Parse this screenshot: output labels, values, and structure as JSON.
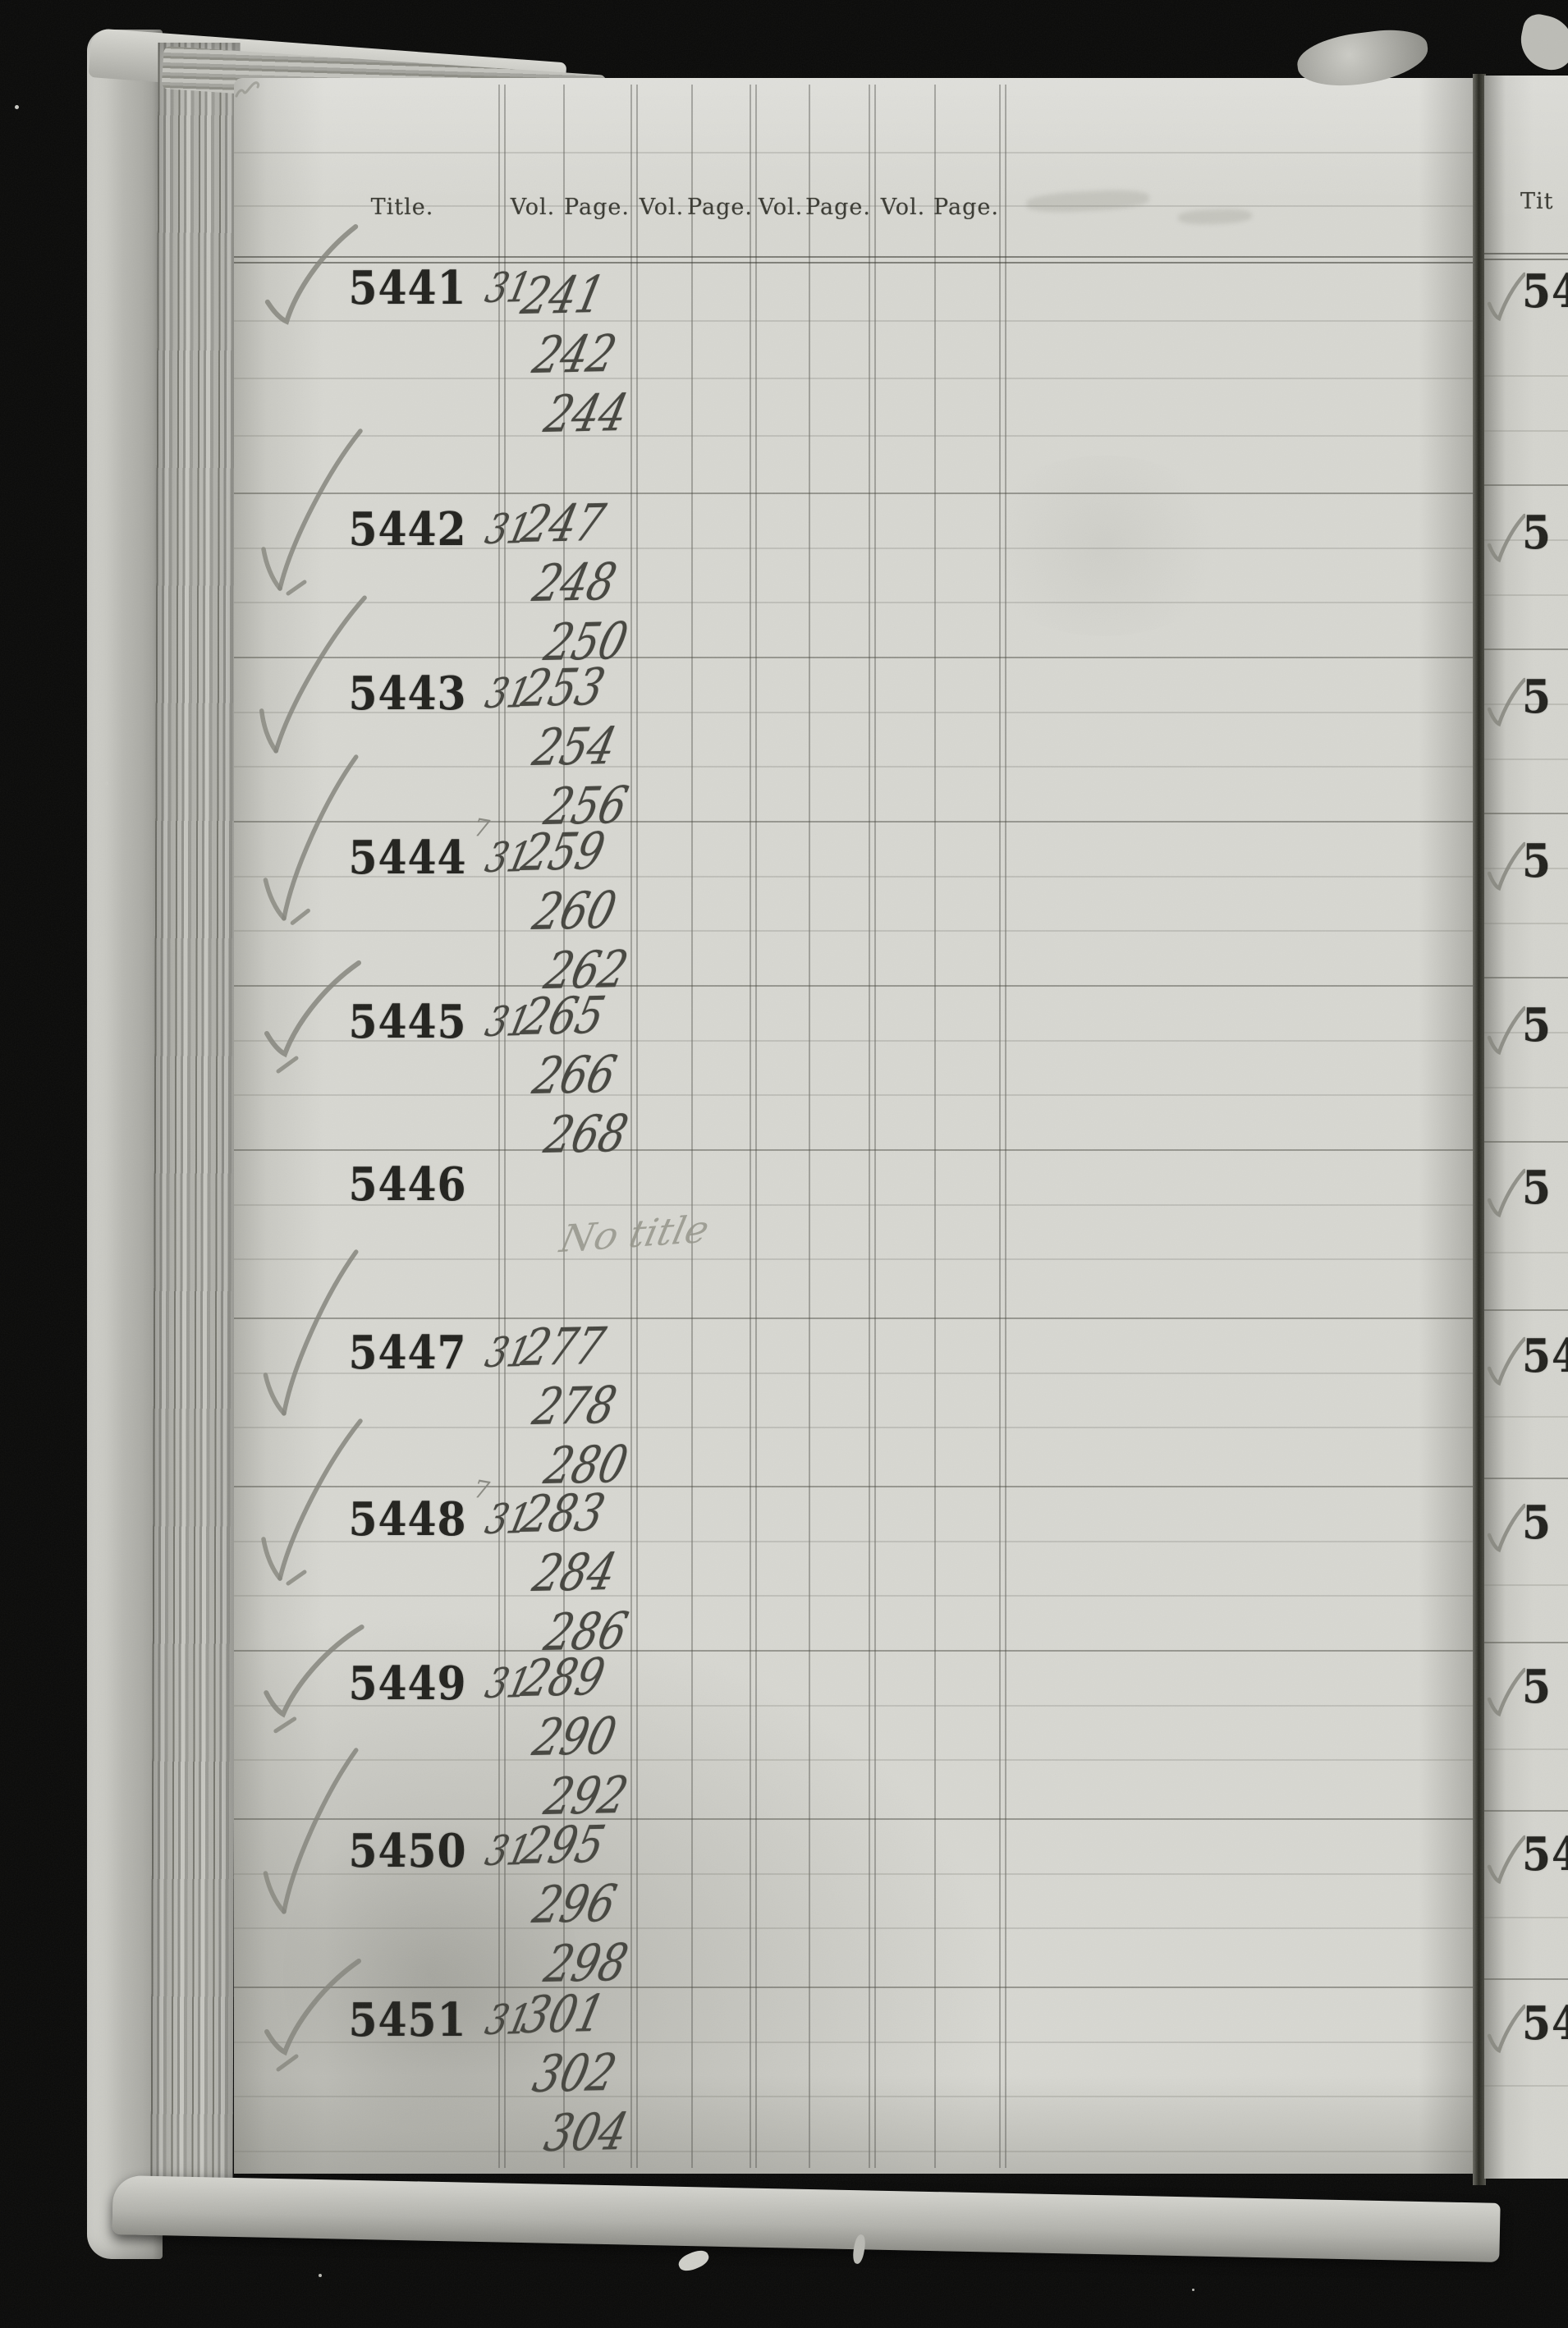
{
  "header": {
    "title_label": "Title.",
    "vol_label": "Vol.",
    "page_label": "Page."
  },
  "entries": [
    {
      "number": "5441",
      "vol": "31",
      "pages": [
        "241",
        "242",
        "244"
      ],
      "check": "short",
      "tick": false,
      "pencil_mark": "",
      "pencil_note": ""
    },
    {
      "number": "5442",
      "vol": "31",
      "pages": [
        "247",
        "248",
        "250"
      ],
      "check": "long",
      "tick": true,
      "pencil_mark": "",
      "pencil_note": ""
    },
    {
      "number": "5443",
      "vol": "31",
      "pages": [
        "253",
        "254",
        "256"
      ],
      "check": "long",
      "tick": false,
      "pencil_mark": "",
      "pencil_note": ""
    },
    {
      "number": "5444",
      "vol": "31",
      "pages": [
        "259",
        "260",
        "262"
      ],
      "check": "long",
      "tick": true,
      "pencil_mark": "7",
      "pencil_note": ""
    },
    {
      "number": "5445",
      "vol": "31",
      "pages": [
        "265",
        "266",
        "268"
      ],
      "check": "short",
      "tick": true,
      "pencil_mark": "",
      "pencil_note": ""
    },
    {
      "number": "5446",
      "vol": "",
      "pages": [],
      "check": "none",
      "tick": false,
      "pencil_mark": "",
      "pencil_note": "No title"
    },
    {
      "number": "5447",
      "vol": "31",
      "pages": [
        "277",
        "278",
        "280"
      ],
      "check": "long",
      "tick": false,
      "pencil_mark": "",
      "pencil_note": ""
    },
    {
      "number": "5448",
      "vol": "31",
      "pages": [
        "283",
        "284",
        "286"
      ],
      "check": "long",
      "tick": true,
      "pencil_mark": "7",
      "pencil_note": ""
    },
    {
      "number": "5449",
      "vol": "31",
      "pages": [
        "289",
        "290",
        "292"
      ],
      "check": "short",
      "tick": true,
      "pencil_mark": "",
      "pencil_note": ""
    },
    {
      "number": "5450",
      "vol": "31",
      "pages": [
        "295",
        "296",
        "298"
      ],
      "check": "long",
      "tick": false,
      "pencil_mark": "",
      "pencil_note": ""
    },
    {
      "number": "5451",
      "vol": "31",
      "pages": [
        "301",
        "302",
        "304"
      ],
      "check": "short",
      "tick": true,
      "pencil_mark": "",
      "pencil_note": ""
    }
  ],
  "right_page": {
    "header_partial": "Tit",
    "entries": [
      {
        "digits": "54"
      },
      {
        "digits": "5"
      },
      {
        "digits": "5"
      },
      {
        "digits": "5"
      },
      {
        "digits": "5"
      },
      {
        "digits": "5"
      },
      {
        "digits": "54"
      },
      {
        "digits": "5"
      },
      {
        "digits": "5"
      },
      {
        "digits": "54"
      },
      {
        "digits": "54"
      }
    ]
  },
  "colors": {
    "background": "#0a0a09",
    "paper": "#d7d7d1",
    "paper_right": "#d4d4ce",
    "cover": "#bdbdb7",
    "ink": "#45453f",
    "pencil": "#85857c",
    "print": "#22221e",
    "rule": "#8d8d85"
  }
}
